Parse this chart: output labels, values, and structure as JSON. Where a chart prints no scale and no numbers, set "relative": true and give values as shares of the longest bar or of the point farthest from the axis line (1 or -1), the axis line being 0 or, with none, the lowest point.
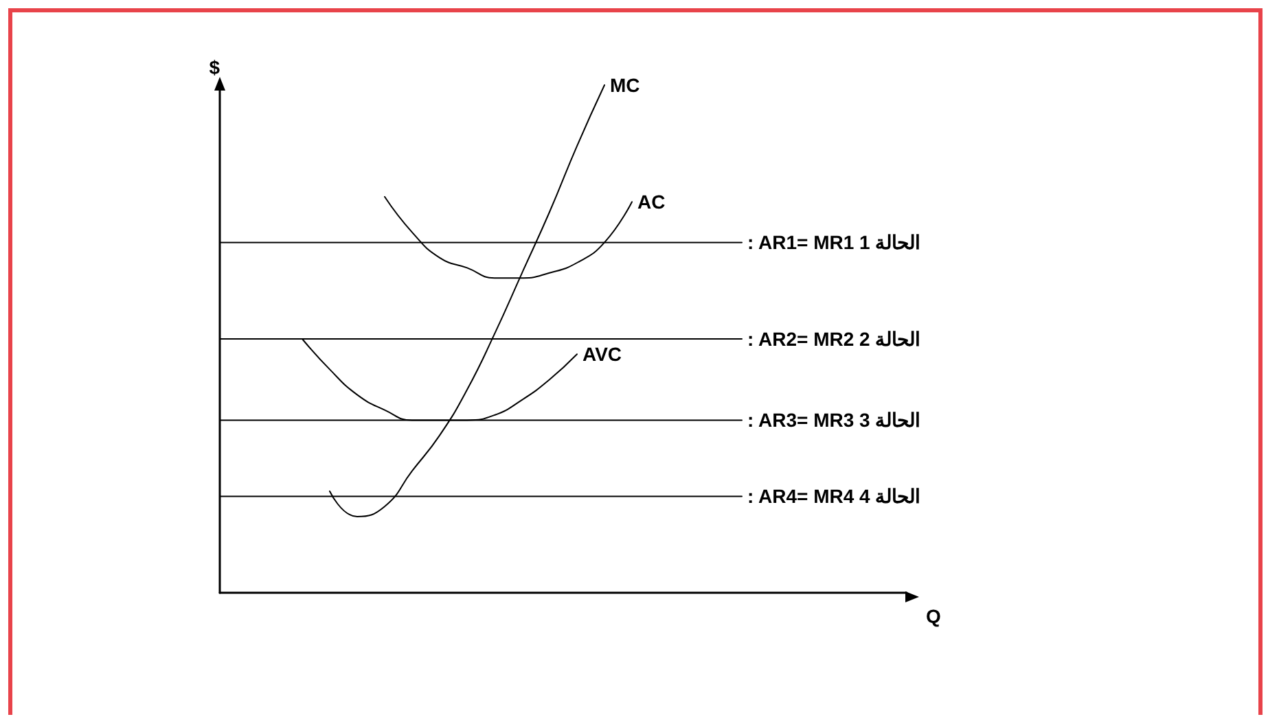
{
  "chart_data": {
    "type": "line",
    "relative": true,
    "xlabel": "Q",
    "ylabel": "$",
    "grid": false,
    "legend": false,
    "marker": "none",
    "line_style": "solid",
    "categories": [
      null,
      null,
      null,
      null,
      null,
      null,
      null,
      null,
      null,
      null,
      null,
      null,
      null,
      null,
      null,
      null,
      null,
      null,
      null,
      null,
      null,
      null,
      null,
      null,
      null,
      null
    ],
    "series": [
      {
        "name": "MC",
        "color": "#000000",
        "values": [
          null,
          null,
          null,
          null,
          0.2,
          0.15,
          0.17,
          0.24,
          0.31,
          0.4,
          0.51,
          0.63,
          0.75,
          0.88,
          1,
          null,
          null,
          null,
          null,
          null,
          null,
          null,
          null,
          null,
          null,
          null
        ]
      },
      {
        "name": "AC",
        "color": "#000000",
        "values": [
          null,
          null,
          null,
          null,
          null,
          null,
          0.78,
          0.71,
          0.66,
          0.64,
          0.62,
          0.62,
          0.63,
          0.65,
          0.69,
          0.77,
          null,
          null,
          null,
          null,
          null,
          null,
          null,
          null,
          null,
          null
        ]
      },
      {
        "name": "AVC",
        "color": "#000000",
        "values": [
          null,
          null,
          null,
          0.5,
          0.44,
          0.39,
          0.36,
          0.34,
          0.34,
          0.34,
          0.35,
          0.38,
          0.42,
          0.47,
          null,
          null,
          null,
          null,
          null,
          null,
          null,
          null,
          null,
          null,
          null,
          null
        ]
      },
      {
        "name": ": AR1= MR1 1 الحالة",
        "color": "#000000",
        "values": [
          0.69,
          0.69,
          0.69,
          0.69,
          0.69,
          0.69,
          0.69,
          0.69,
          0.69,
          0.69,
          0.69,
          0.69,
          0.69,
          0.69,
          0.69,
          0.69,
          0.69,
          0.69,
          0.69,
          0.69,
          null,
          null,
          null,
          null,
          null,
          null
        ]
      },
      {
        "name": ": AR2= MR2 2 الحالة",
        "color": "#000000",
        "values": [
          0.5,
          0.5,
          0.5,
          0.5,
          0.5,
          0.5,
          0.5,
          0.5,
          0.5,
          0.5,
          0.5,
          0.5,
          0.5,
          0.5,
          0.5,
          0.5,
          0.5,
          0.5,
          0.5,
          0.5,
          null,
          null,
          null,
          null,
          null,
          null
        ]
      },
      {
        "name": ": AR3= MR3 3 الحالة",
        "color": "#000000",
        "values": [
          0.34,
          0.34,
          0.34,
          0.34,
          0.34,
          0.34,
          0.34,
          0.34,
          0.34,
          0.34,
          0.34,
          0.34,
          0.34,
          0.34,
          0.34,
          0.34,
          0.34,
          0.34,
          0.34,
          0.34,
          null,
          null,
          null,
          null,
          null,
          null
        ]
      },
      {
        "name": ": AR4= MR4 4 الحالة",
        "color": "#000000",
        "values": [
          0.19,
          0.19,
          0.19,
          0.19,
          0.19,
          0.19,
          0.19,
          0.19,
          0.19,
          0.19,
          0.19,
          0.19,
          0.19,
          0.19,
          0.19,
          0.19,
          0.19,
          0.19,
          0.19,
          0.19,
          null,
          null,
          null,
          null,
          null,
          null
        ]
      }
    ]
  }
}
